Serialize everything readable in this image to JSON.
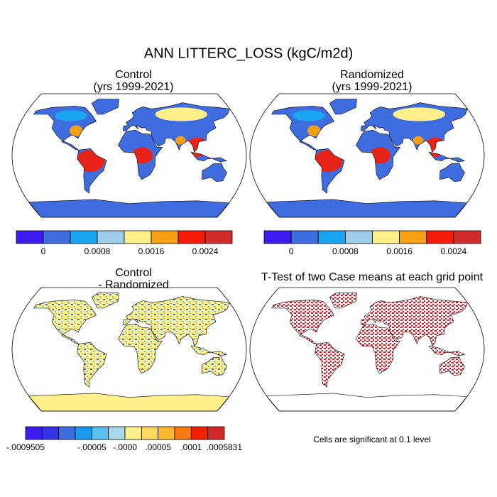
{
  "title": "ANN LITTERC_LOSS (kgC/m2d)",
  "panels": [
    {
      "title": [
        "Control",
        "(yrs 1999-2021)"
      ]
    },
    {
      "title": [
        "Randomized",
        "(yrs 1999-2021)"
      ]
    },
    {
      "title": [
        "Control",
        "- Randomized"
      ]
    },
    {
      "title": [
        "T-Test of two Case means at each grid point"
      ],
      "note": "Cells are significant at 0.1 level"
    }
  ],
  "colorbars": [
    {
      "colors": [
        "#3f1cf0",
        "#3f6de0",
        "#1aa5f0",
        "#9dcde8",
        "#fff08c",
        "#f8a015",
        "#f51a0a",
        "#d22b2b"
      ],
      "labels": [
        null,
        "0",
        null,
        "0.0008",
        null,
        "0.0016",
        null,
        "0.0024",
        null
      ]
    },
    {
      "colors": [
        "#3f1cf0",
        "#3f6de0",
        "#1aa5f0",
        "#9dcde8",
        "#fff08c",
        "#f8a015",
        "#f51a0a",
        "#d22b2b"
      ],
      "labels": [
        null,
        "0",
        null,
        "0.0008",
        null,
        "0.0016",
        null,
        "0.0024",
        null
      ]
    },
    {
      "colors": [
        "#3f1cf0",
        "#3535e8",
        "#3f6de0",
        "#1a9af0",
        "#5ac0f0",
        "#a8d8ec",
        "#fff08c",
        "#ffd860",
        "#ffb830",
        "#f87a10",
        "#f52008",
        "#d22b2b"
      ],
      "labels": [
        "-.0009505",
        null,
        null,
        null,
        "-.00005",
        null,
        "-.0000",
        null,
        ".00005",
        null,
        ".0001",
        null,
        ".0005831"
      ]
    }
  ]
}
